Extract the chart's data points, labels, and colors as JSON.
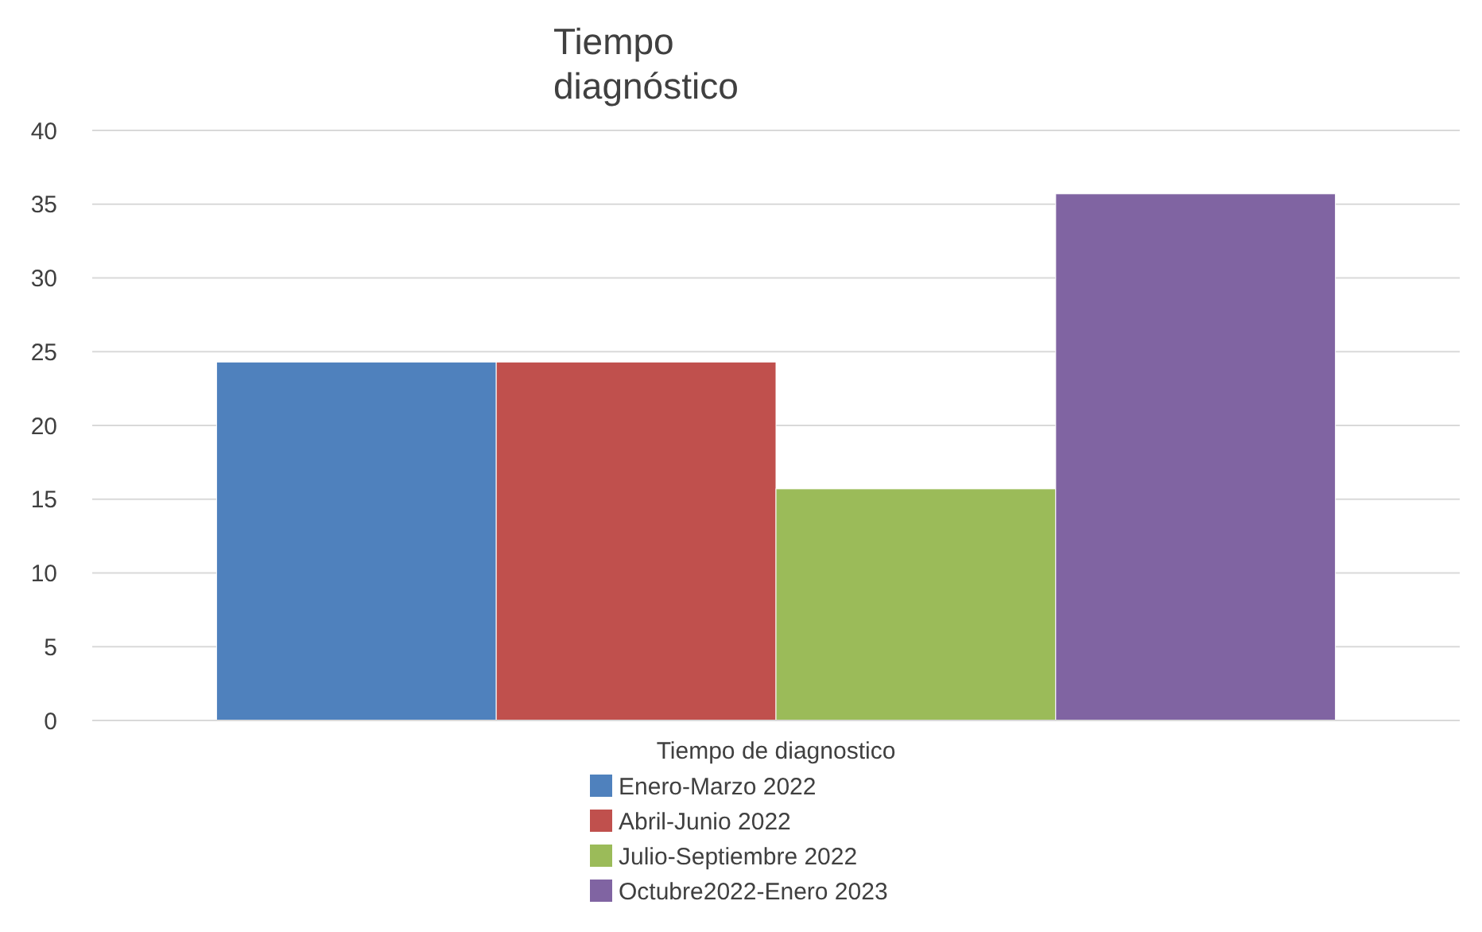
{
  "chart_data": {
    "type": "bar",
    "title": "Tiempo diagnóstico",
    "categories": [
      "Tiempo de diagnostico"
    ],
    "series": [
      {
        "name": "Enero-Marzo 2022",
        "color": "#4f81bd",
        "values": [
          24.3
        ]
      },
      {
        "name": "Abril-Junio 2022",
        "color": "#c0504d",
        "values": [
          24.3
        ]
      },
      {
        "name": "Julio-Septiembre 2022",
        "color": "#9bbb59",
        "values": [
          15.7
        ]
      },
      {
        "name": "Octubre2022-Enero 2023",
        "color": "#8064a2",
        "values": [
          35.7
        ]
      }
    ],
    "ylim": [
      0,
      40
    ],
    "yticks": [
      0,
      5,
      10,
      15,
      20,
      25,
      30,
      35,
      40
    ],
    "grid": "y",
    "legend": "bottom"
  }
}
